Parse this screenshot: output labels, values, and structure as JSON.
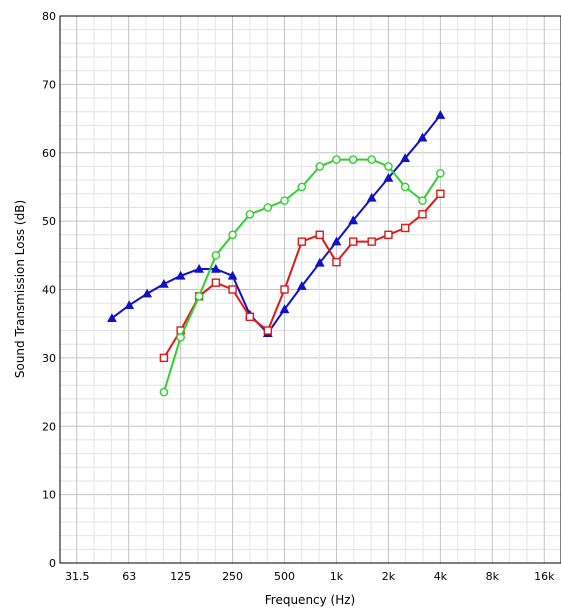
{
  "chart_data": {
    "type": "line",
    "title": "",
    "xlabel": "Frequency (Hz)",
    "ylabel": "Sound Transmission Loss (dB)",
    "x_scale": "log",
    "xlim": [
      25,
      20000
    ],
    "ylim": [
      0,
      80
    ],
    "y_ticks": [
      0,
      10,
      20,
      30,
      40,
      50,
      60,
      70,
      80
    ],
    "x_ticks": [
      {
        "value": 31.5,
        "label": "31.5"
      },
      {
        "value": 63,
        "label": "63"
      },
      {
        "value": 125,
        "label": "125"
      },
      {
        "value": 250,
        "label": "250"
      },
      {
        "value": 500,
        "label": "500"
      },
      {
        "value": 1000,
        "label": "1k"
      },
      {
        "value": 2000,
        "label": "2k"
      },
      {
        "value": 4000,
        "label": "4k"
      },
      {
        "value": 8000,
        "label": "8k"
      },
      {
        "value": 16000,
        "label": "16k"
      }
    ],
    "grid": true,
    "series": [
      {
        "color": "#1010c8",
        "marker": "triangle",
        "x": [
          50,
          63,
          80,
          100,
          125,
          160,
          200,
          250,
          315,
          400,
          500,
          630,
          800,
          1000,
          1250,
          1600,
          2000,
          2500,
          3150,
          4000
        ],
        "values": [
          35.8,
          37.7,
          39.4,
          40.8,
          42.0,
          43.0,
          43.0,
          42.0,
          36.3,
          33.6,
          37.1,
          40.5,
          43.9,
          47.0,
          50.1,
          53.4,
          56.3,
          59.2,
          62.2,
          65.5
        ]
      },
      {
        "color": "#e01818",
        "marker": "square",
        "x": [
          100,
          125,
          160,
          200,
          250,
          315,
          400,
          500,
          630,
          800,
          1000,
          1250,
          1600,
          2000,
          2500,
          3150,
          4000
        ],
        "values": [
          30,
          34,
          39,
          41,
          40,
          36,
          34,
          40,
          47,
          48,
          44,
          47,
          47,
          48,
          49,
          51,
          54
        ]
      },
      {
        "color": "#30d030",
        "marker": "circle",
        "x": [
          100,
          125,
          160,
          200,
          250,
          315,
          400,
          500,
          630,
          800,
          1000,
          1250,
          1600,
          2000,
          2500,
          3150,
          4000
        ],
        "values": [
          25,
          33,
          39,
          45,
          48,
          51,
          52,
          53,
          55,
          58,
          59,
          59,
          59,
          58,
          55,
          53,
          57
        ]
      }
    ]
  }
}
